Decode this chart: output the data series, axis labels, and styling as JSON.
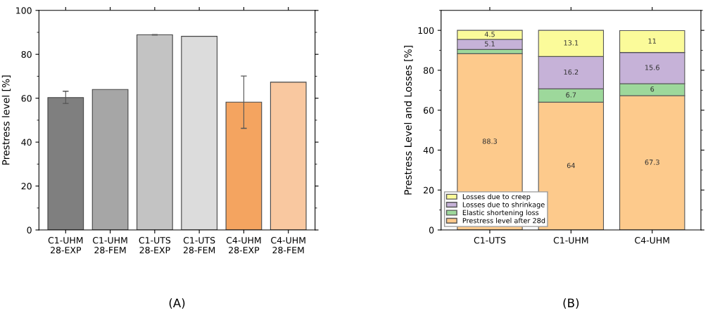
{
  "chart_data": [
    {
      "type": "bar",
      "ylabel": "Prestress level [%]",
      "categories": [
        "C1-UHM\n28-EXP",
        "C1-UHM\n28-FEM",
        "C1-UTS\n28-EXP",
        "C1-UTS\n28-FEM",
        "C4-UHM\n28-EXP",
        "C4-UHM\n28-FEM"
      ],
      "values": [
        60.3,
        64,
        88.9,
        88.2,
        58.2,
        67.3
      ],
      "errors": [
        [
          57.6,
          63.2
        ],
        null,
        [
          88.8,
          89.0
        ],
        null,
        [
          46.3,
          70.1
        ],
        null
      ],
      "colors": [
        "#7f7f7f",
        "#a6a6a6",
        "#c3c3c3",
        "#dcdcdc",
        "#f4a460",
        "#f9c8a0"
      ],
      "ylim": [
        0,
        100
      ],
      "yticks": [
        0,
        20,
        40,
        60,
        80,
        100
      ],
      "grid": false,
      "annotations": [
        "(A)"
      ]
    },
    {
      "type": "bar",
      "stacked": true,
      "ylabel": "Prestress Level and Losses [%]",
      "categories": [
        "C1-UTS",
        "C1-UHM",
        "C4-UHM"
      ],
      "series": [
        {
          "name": "Prestress level after 28d",
          "color": "#fdca8c",
          "values": [
            88.3,
            64,
            67.3
          ],
          "value_labels": [
            "88.3",
            "64",
            "67.3"
          ]
        },
        {
          "name": "Elastic shortening loss",
          "color": "#9dd89b",
          "values": [
            2.1,
            6.7,
            6
          ],
          "value_labels": [
            null,
            "6.7",
            "6"
          ]
        },
        {
          "name": "Losses due to shrinkage",
          "color": "#c6b2d8",
          "values": [
            5.1,
            16.2,
            15.6
          ],
          "value_labels": [
            "5.1",
            "16.2",
            "15.6"
          ]
        },
        {
          "name": "Losses due to creep",
          "color": "#fbfb9a",
          "values": [
            4.5,
            13.1,
            11
          ],
          "value_labels": [
            "4.5",
            "13.1",
            "11"
          ]
        }
      ],
      "ylim": [
        0,
        110
      ],
      "yticks": [
        0,
        20,
        40,
        60,
        80,
        100
      ],
      "grid": false,
      "legend": "bottom left",
      "annotations": [
        "(B)"
      ]
    }
  ]
}
